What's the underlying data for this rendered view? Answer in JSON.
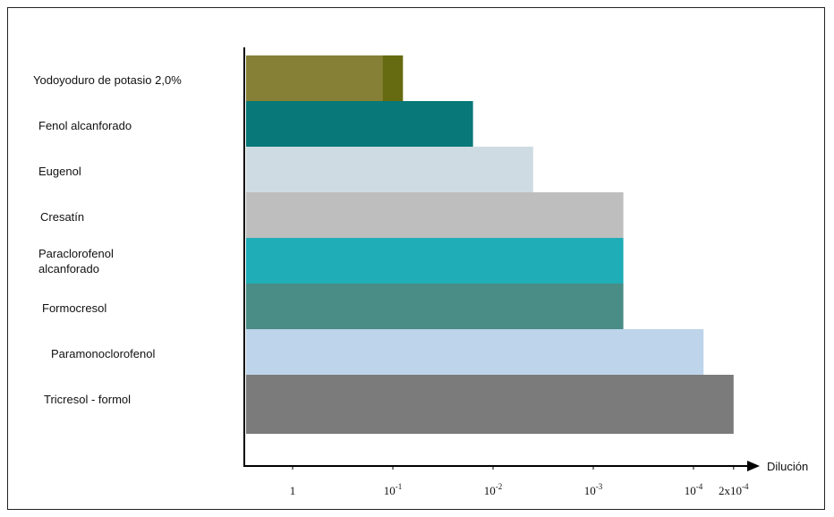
{
  "chart_data": {
    "type": "bar",
    "orientation": "horizontal",
    "categories": [
      "Yodoyoduro de potasio 2,0%",
      "Fenol alcanforado",
      "Eugenol",
      "Cresatín",
      "Paraclorofenol alcanforado",
      "Formocresol",
      "Paramonoclorofenol",
      "Tricresol - formol"
    ],
    "category_lines": [
      [
        "Yodoyoduro de potasio 2,0%"
      ],
      [
        "Fenol alcanforado"
      ],
      [
        "Eugenol"
      ],
      [
        "Cresatín"
      ],
      [
        "Paraclorofenol",
        "alcanforado"
      ],
      [
        "Formocresol"
      ],
      [
        "Paramonoclorofenol"
      ],
      [
        "Tricresol - formol"
      ]
    ],
    "values_tick_position": [
      1.1,
      1.8,
      2.4,
      3.3,
      3.3,
      3.3,
      4.1,
      4.4
    ],
    "colors": [
      "#858035",
      "#087878",
      "#cedbe2",
      "#bebebe",
      "#1fadb7",
      "#4a8c86",
      "#bdd4ea",
      "#7b7b7b"
    ],
    "accent_strips": [
      {
        "bar_index": 0,
        "from_tick_position": 0.9,
        "color": "#666a10"
      }
    ],
    "x_axis": {
      "label": "Dilución",
      "ticks": [
        {
          "base": "1",
          "exp": ""
        },
        {
          "base": "10",
          "exp": "-1"
        },
        {
          "base": "10",
          "exp": "-2"
        },
        {
          "base": "10",
          "exp": "-3"
        },
        {
          "base": "10",
          "exp": "-4"
        },
        {
          "base": "2x10",
          "exp": "-4"
        }
      ],
      "tick_positions": [
        0,
        1,
        2,
        3,
        4,
        4.4
      ]
    },
    "title": "",
    "ylabel": ""
  }
}
